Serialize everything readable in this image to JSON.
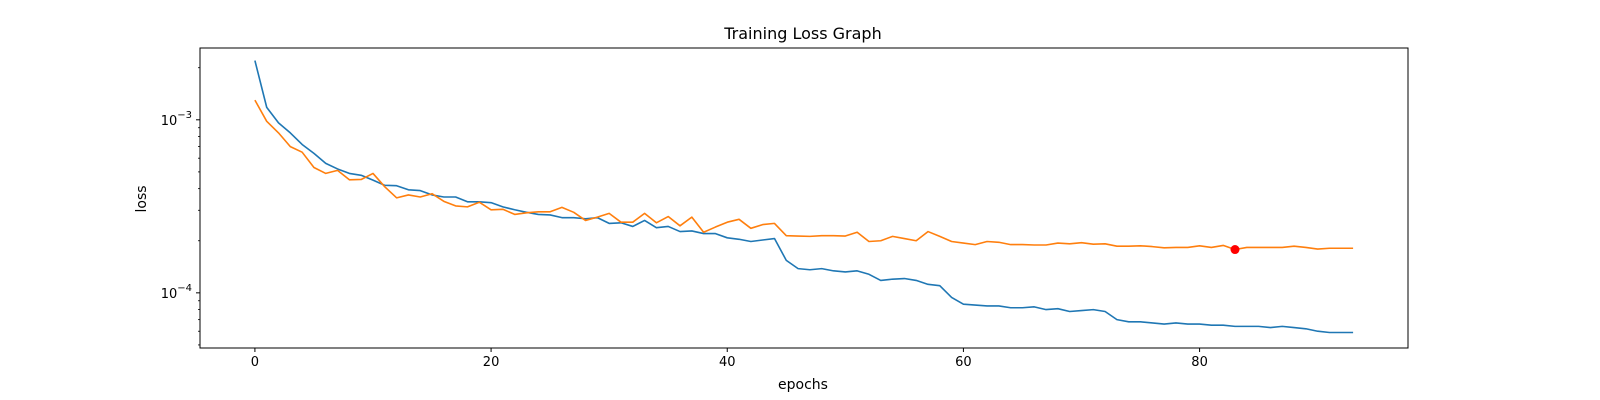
{
  "chart_data": {
    "type": "line",
    "title": "Training Loss Graph",
    "xlabel": "epochs",
    "ylabel": "loss",
    "yscale": "log",
    "xlim": [
      -4.65,
      97.65
    ],
    "ylim": [
      4.8e-05,
      0.0026
    ],
    "grid": false,
    "legend": "none",
    "x_ticks": [
      {
        "value": 0,
        "label": "0"
      },
      {
        "value": 20,
        "label": "20"
      },
      {
        "value": 40,
        "label": "40"
      },
      {
        "value": 60,
        "label": "60"
      },
      {
        "value": 80,
        "label": "80"
      }
    ],
    "y_ticks": [
      {
        "value": 0.001,
        "base": "10",
        "exp": "−3"
      },
      {
        "value": 0.0001,
        "base": "10",
        "exp": "−4"
      }
    ],
    "series": [
      {
        "color": "#1f77b4",
        "values": [
          0.0022,
          0.00118,
          0.00096,
          0.00084,
          0.00072,
          0.00064,
          0.00056,
          0.00052,
          0.00049,
          0.000478,
          0.000448,
          0.000418,
          0.000416,
          0.000394,
          0.00039,
          0.000368,
          0.000358,
          0.000358,
          0.000336,
          0.000336,
          0.000332,
          0.000314,
          0.000302,
          0.000292,
          0.000284,
          0.000282,
          0.000272,
          0.000272,
          0.000268,
          0.000272,
          0.000252,
          0.000254,
          0.000242,
          0.000262,
          0.000238,
          0.000242,
          0.000226,
          0.000228,
          0.00022,
          0.00022,
          0.000208,
          0.000204,
          0.000198,
          0.000202,
          0.000206,
          0.000154,
          0.000138,
          0.000136,
          0.000138,
          0.000134,
          0.000132,
          0.000134,
          0.000128,
          0.000118,
          0.00012,
          0.000121,
          0.000118,
          0.000112,
          0.00011,
          9.4e-05,
          8.6e-05,
          8.5e-05,
          8.4e-05,
          8.4e-05,
          8.2e-05,
          8.2e-05,
          8.3e-05,
          8e-05,
          8.1e-05,
          7.8e-05,
          7.9e-05,
          8e-05,
          7.8e-05,
          7e-05,
          6.8e-05,
          6.8e-05,
          6.7e-05,
          6.6e-05,
          6.7e-05,
          6.6e-05,
          6.6e-05,
          6.5e-05,
          6.5e-05,
          6.4e-05,
          6.4e-05,
          6.4e-05,
          6.3e-05,
          6.4e-05,
          6.3e-05,
          6.2e-05,
          6e-05,
          5.9e-05,
          5.9e-05,
          5.9e-05
        ]
      },
      {
        "color": "#ff7f0e",
        "values": [
          0.0013,
          0.00098,
          0.00084,
          0.0007,
          0.00065,
          0.00053,
          0.00049,
          0.00051,
          0.00045,
          0.000452,
          0.00049,
          0.00041,
          0.000354,
          0.000368,
          0.000358,
          0.000374,
          0.000338,
          0.000318,
          0.000314,
          0.000334,
          0.000302,
          0.000304,
          0.000284,
          0.00029,
          0.000294,
          0.000294,
          0.000312,
          0.000292,
          0.000262,
          0.000274,
          0.000288,
          0.000256,
          0.000256,
          0.000288,
          0.000254,
          0.000276,
          0.000244,
          0.000274,
          0.000224,
          0.00024,
          0.000256,
          0.000266,
          0.000236,
          0.000248,
          0.000252,
          0.000214,
          0.000213,
          0.000212,
          0.000214,
          0.000214,
          0.000213,
          0.000224,
          0.000198,
          0.0002,
          0.000212,
          0.000206,
          0.0002,
          0.000226,
          0.000212,
          0.000198,
          0.000194,
          0.00019,
          0.000198,
          0.000196,
          0.00019,
          0.00019,
          0.000189,
          0.000189,
          0.000194,
          0.000192,
          0.000195,
          0.000191,
          0.000192,
          0.000186,
          0.000186,
          0.000187,
          0.000185,
          0.000182,
          0.000183,
          0.000183,
          0.000187,
          0.000183,
          0.000188,
          0.000178,
          0.000183,
          0.000183,
          0.000183,
          0.000183,
          0.000186,
          0.000183,
          0.000179,
          0.000181,
          0.000181,
          0.000181
        ]
      }
    ],
    "marker": {
      "x": 83,
      "y": 0.000178,
      "color": "#ff0000"
    }
  }
}
